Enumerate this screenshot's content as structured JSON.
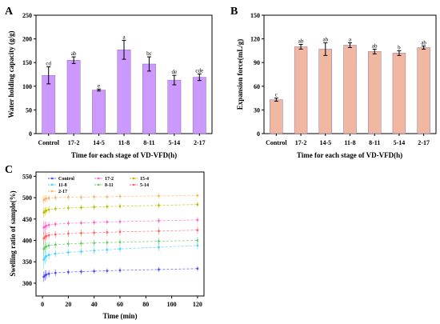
{
  "chart_data": [
    {
      "panel": "A",
      "type": "bar",
      "xlabel": "Time for each stage of VD-VFD(h)",
      "ylabel": "Water holding capacity (g/g)",
      "categories": [
        "Control",
        "17-2",
        "14-5",
        "11-8",
        "8-11",
        "5-14",
        "2-17"
      ],
      "values": [
        123,
        155,
        92,
        177,
        147,
        113,
        119
      ],
      "errors": [
        18,
        7,
        2,
        20,
        15,
        10,
        7
      ],
      "significance": [
        "cd",
        "ab",
        "e",
        "a",
        "bc",
        "de",
        "cde"
      ],
      "ylim": [
        0,
        250
      ],
      "yticks": [
        0,
        50,
        100,
        150,
        200,
        250
      ],
      "bar_color": "#cc99ff",
      "grid": false
    },
    {
      "panel": "B",
      "type": "bar",
      "xlabel": "Time for each stage of VD-VFD(h)",
      "ylabel": "Expansion force(mL/g)",
      "categories": [
        "Control",
        "17-2",
        "14-5",
        "11-8",
        "8-11",
        "5-14",
        "2-17"
      ],
      "values": [
        43,
        110,
        107,
        112,
        104,
        102,
        109
      ],
      "errors": [
        2,
        3,
        8,
        3,
        3,
        3,
        2
      ],
      "significance": [
        "c",
        "ab",
        "ab",
        "a",
        "ab",
        "b",
        "ab"
      ],
      "ylim": [
        0,
        150
      ],
      "yticks": [
        0,
        30,
        60,
        90,
        120,
        150
      ],
      "bar_color": "#f0b8a0",
      "grid": false
    },
    {
      "panel": "C",
      "type": "scatter",
      "xlabel": "Time (min)",
      "ylabel": "Swelling ratio of sample(%)",
      "xlim": [
        -5,
        125
      ],
      "ylim": [
        270,
        560
      ],
      "xticks": [
        0,
        20,
        40,
        60,
        80,
        100,
        120
      ],
      "yticks": [
        300,
        350,
        400,
        450,
        500,
        550
      ],
      "legend_position": "top-left",
      "grid": false,
      "series": [
        {
          "name": "Control",
          "color": "#4d4dff",
          "x": [
            1,
            2,
            3,
            5,
            10,
            20,
            30,
            40,
            50,
            60,
            90,
            120
          ],
          "y": [
            315,
            318,
            320,
            322,
            324,
            326,
            327,
            328,
            329,
            330,
            332,
            334
          ],
          "errors": [
            12,
            12,
            10,
            8,
            8,
            6,
            6,
            6,
            6,
            6,
            6,
            6
          ]
        },
        {
          "name": "17-2",
          "color": "#ff66cc",
          "x": [
            1,
            2,
            3,
            5,
            10,
            20,
            30,
            40,
            50,
            60,
            90,
            120
          ],
          "y": [
            430,
            432,
            434,
            436,
            438,
            440,
            441,
            442,
            443,
            444,
            446,
            448
          ],
          "errors": [
            15,
            12,
            10,
            8,
            6,
            6,
            6,
            6,
            6,
            6,
            6,
            6
          ]
        },
        {
          "name": "15-4",
          "color": "#bfbf00",
          "x": [
            1,
            2,
            3,
            5,
            10,
            20,
            30,
            40,
            50,
            60,
            90,
            120
          ],
          "y": [
            465,
            468,
            470,
            472,
            474,
            476,
            477,
            478,
            479,
            480,
            482,
            484
          ],
          "errors": [
            12,
            10,
            8,
            8,
            6,
            6,
            6,
            6,
            6,
            6,
            6,
            6
          ]
        },
        {
          "name": "11-8",
          "color": "#4dd2ff",
          "x": [
            1,
            2,
            3,
            5,
            10,
            20,
            30,
            40,
            50,
            60,
            90,
            120
          ],
          "y": [
            355,
            360,
            363,
            366,
            369,
            372,
            374,
            376,
            378,
            380,
            384,
            388
          ],
          "errors": [
            20,
            15,
            12,
            10,
            8,
            8,
            8,
            8,
            8,
            8,
            8,
            8
          ]
        },
        {
          "name": "8-11",
          "color": "#66cc66",
          "x": [
            1,
            2,
            3,
            5,
            10,
            20,
            30,
            40,
            50,
            60,
            90,
            120
          ],
          "y": [
            380,
            384,
            386,
            388,
            390,
            392,
            393,
            394,
            395,
            396,
            398,
            400
          ],
          "errors": [
            15,
            12,
            10,
            8,
            8,
            8,
            8,
            8,
            8,
            8,
            8,
            8
          ]
        },
        {
          "name": "5-14",
          "color": "#ff6666",
          "x": [
            1,
            2,
            3,
            5,
            10,
            20,
            30,
            40,
            50,
            60,
            90,
            120
          ],
          "y": [
            405,
            408,
            410,
            412,
            414,
            416,
            417,
            418,
            419,
            420,
            422,
            424
          ],
          "errors": [
            15,
            12,
            10,
            8,
            8,
            8,
            8,
            8,
            8,
            8,
            8,
            8
          ]
        },
        {
          "name": "2-17",
          "color": "#ffb366",
          "x": [
            1,
            2,
            3,
            5,
            10,
            20,
            30,
            40,
            50,
            60,
            90,
            120
          ],
          "y": [
            495,
            497,
            498,
            499,
            500,
            501,
            501,
            502,
            502,
            503,
            504,
            505
          ],
          "errors": [
            10,
            8,
            8,
            6,
            6,
            6,
            6,
            6,
            6,
            6,
            6,
            6
          ]
        }
      ]
    }
  ]
}
